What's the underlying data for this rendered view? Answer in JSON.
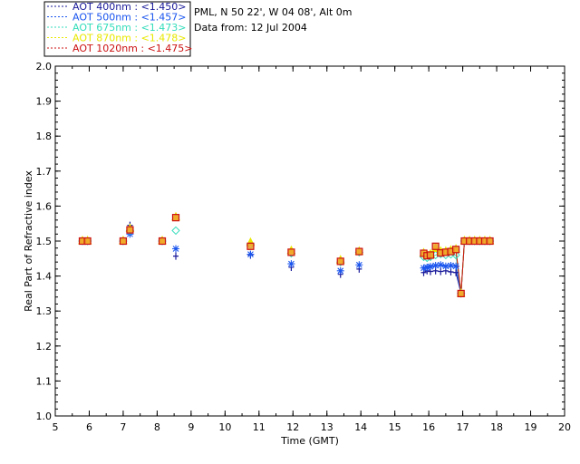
{
  "site": {
    "location": "PML, N 50 22', W 04 08', Alt 0m",
    "date_line": "Data from: 12 Jul 2004"
  },
  "chart_data": {
    "type": "scatter",
    "xlabel": "Time (GMT)",
    "ylabel": "Real Part of Refractive index",
    "xlim": [
      5,
      20
    ],
    "ylim": [
      1.0,
      2.0
    ],
    "x_ticks": [
      "5",
      "6",
      "7",
      "8",
      "9",
      "10",
      "11",
      "12",
      "13",
      "14",
      "15",
      "16",
      "17",
      "18",
      "19",
      "20"
    ],
    "y_ticks": [
      "1.0",
      "1.1",
      "1.2",
      "1.3",
      "1.4",
      "1.5",
      "1.6",
      "1.7",
      "1.8",
      "1.9",
      "2.0"
    ],
    "grid": false,
    "legend_position": "top-left outside",
    "series": [
      {
        "name": "AOT  400nm : <1.450>",
        "color": "#1a1a9a",
        "marker": "plus",
        "x": [
          5.8,
          5.95,
          7.0,
          7.2,
          8.15,
          8.55,
          10.75,
          11.95,
          13.4,
          13.95,
          15.85,
          15.95,
          16.05,
          16.2,
          16.35,
          16.5,
          16.65,
          16.8,
          16.95,
          17.05,
          17.2,
          17.35,
          17.5,
          17.65,
          17.8
        ],
        "y": [
          1.5,
          1.5,
          1.5,
          1.545,
          1.5,
          1.457,
          1.46,
          1.425,
          1.405,
          1.42,
          1.41,
          1.415,
          1.413,
          1.415,
          1.413,
          1.415,
          1.412,
          1.41,
          1.35,
          1.5,
          1.5,
          1.5,
          1.5,
          1.5,
          1.5
        ]
      },
      {
        "name": "AOT  500nm : <1.457>",
        "color": "#1a55ee",
        "marker": "asterisk",
        "x": [
          5.8,
          5.95,
          7.0,
          7.2,
          8.15,
          8.55,
          10.75,
          11.95,
          13.4,
          13.95,
          15.85,
          15.95,
          16.05,
          16.2,
          16.35,
          16.5,
          16.65,
          16.8,
          16.95,
          17.05,
          17.2,
          17.35,
          17.5,
          17.65,
          17.8
        ],
        "y": [
          1.5,
          1.5,
          1.5,
          1.52,
          1.5,
          1.478,
          1.462,
          1.435,
          1.415,
          1.432,
          1.423,
          1.425,
          1.427,
          1.43,
          1.432,
          1.428,
          1.43,
          1.428,
          1.35,
          1.5,
          1.5,
          1.5,
          1.5,
          1.5,
          1.5
        ]
      },
      {
        "name": "AOT  675nm : <1.473>",
        "color": "#33ddbb",
        "marker": "diamond",
        "x": [
          5.8,
          5.95,
          7.0,
          7.2,
          8.15,
          8.55,
          10.75,
          11.95,
          13.4,
          13.95,
          15.85,
          15.95,
          16.05,
          16.2,
          16.35,
          16.5,
          16.65,
          16.8,
          16.95,
          17.05,
          17.2,
          17.35,
          17.5,
          17.65,
          17.8
        ],
        "y": [
          1.5,
          1.5,
          1.5,
          1.53,
          1.5,
          1.53,
          1.49,
          1.465,
          1.44,
          1.468,
          1.455,
          1.452,
          1.455,
          1.46,
          1.463,
          1.46,
          1.462,
          1.46,
          1.35,
          1.5,
          1.5,
          1.5,
          1.5,
          1.5,
          1.5
        ]
      },
      {
        "name": "AOT  870nm : <1.478>",
        "color": "#e8e800",
        "marker": "triangle",
        "x": [
          5.8,
          5.95,
          7.0,
          7.2,
          8.15,
          8.55,
          10.75,
          11.95,
          13.4,
          13.95,
          15.85,
          15.95,
          16.05,
          16.2,
          16.35,
          16.5,
          16.65,
          16.8,
          16.95,
          17.05,
          17.2,
          17.35,
          17.5,
          17.65,
          17.8
        ],
        "y": [
          1.5,
          1.5,
          1.5,
          1.535,
          1.5,
          1.568,
          1.495,
          1.472,
          1.445,
          1.47,
          1.465,
          1.46,
          1.462,
          1.478,
          1.47,
          1.47,
          1.473,
          1.476,
          1.35,
          1.5,
          1.5,
          1.5,
          1.5,
          1.5,
          1.5
        ]
      },
      {
        "name": "AOT 1020nm : <1.475>",
        "color": "#cc1111",
        "marker": "square",
        "x": [
          5.8,
          5.95,
          7.0,
          7.2,
          8.15,
          8.55,
          10.75,
          11.95,
          13.4,
          13.95,
          15.85,
          15.95,
          16.05,
          16.2,
          16.35,
          16.5,
          16.65,
          16.8,
          16.95,
          17.05,
          17.2,
          17.35,
          17.5,
          17.65,
          17.8
        ],
        "y": [
          1.5,
          1.5,
          1.5,
          1.532,
          1.5,
          1.567,
          1.485,
          1.468,
          1.442,
          1.47,
          1.465,
          1.458,
          1.46,
          1.485,
          1.466,
          1.468,
          1.47,
          1.476,
          1.35,
          1.5,
          1.5,
          1.5,
          1.5,
          1.5,
          1.5
        ]
      }
    ]
  }
}
